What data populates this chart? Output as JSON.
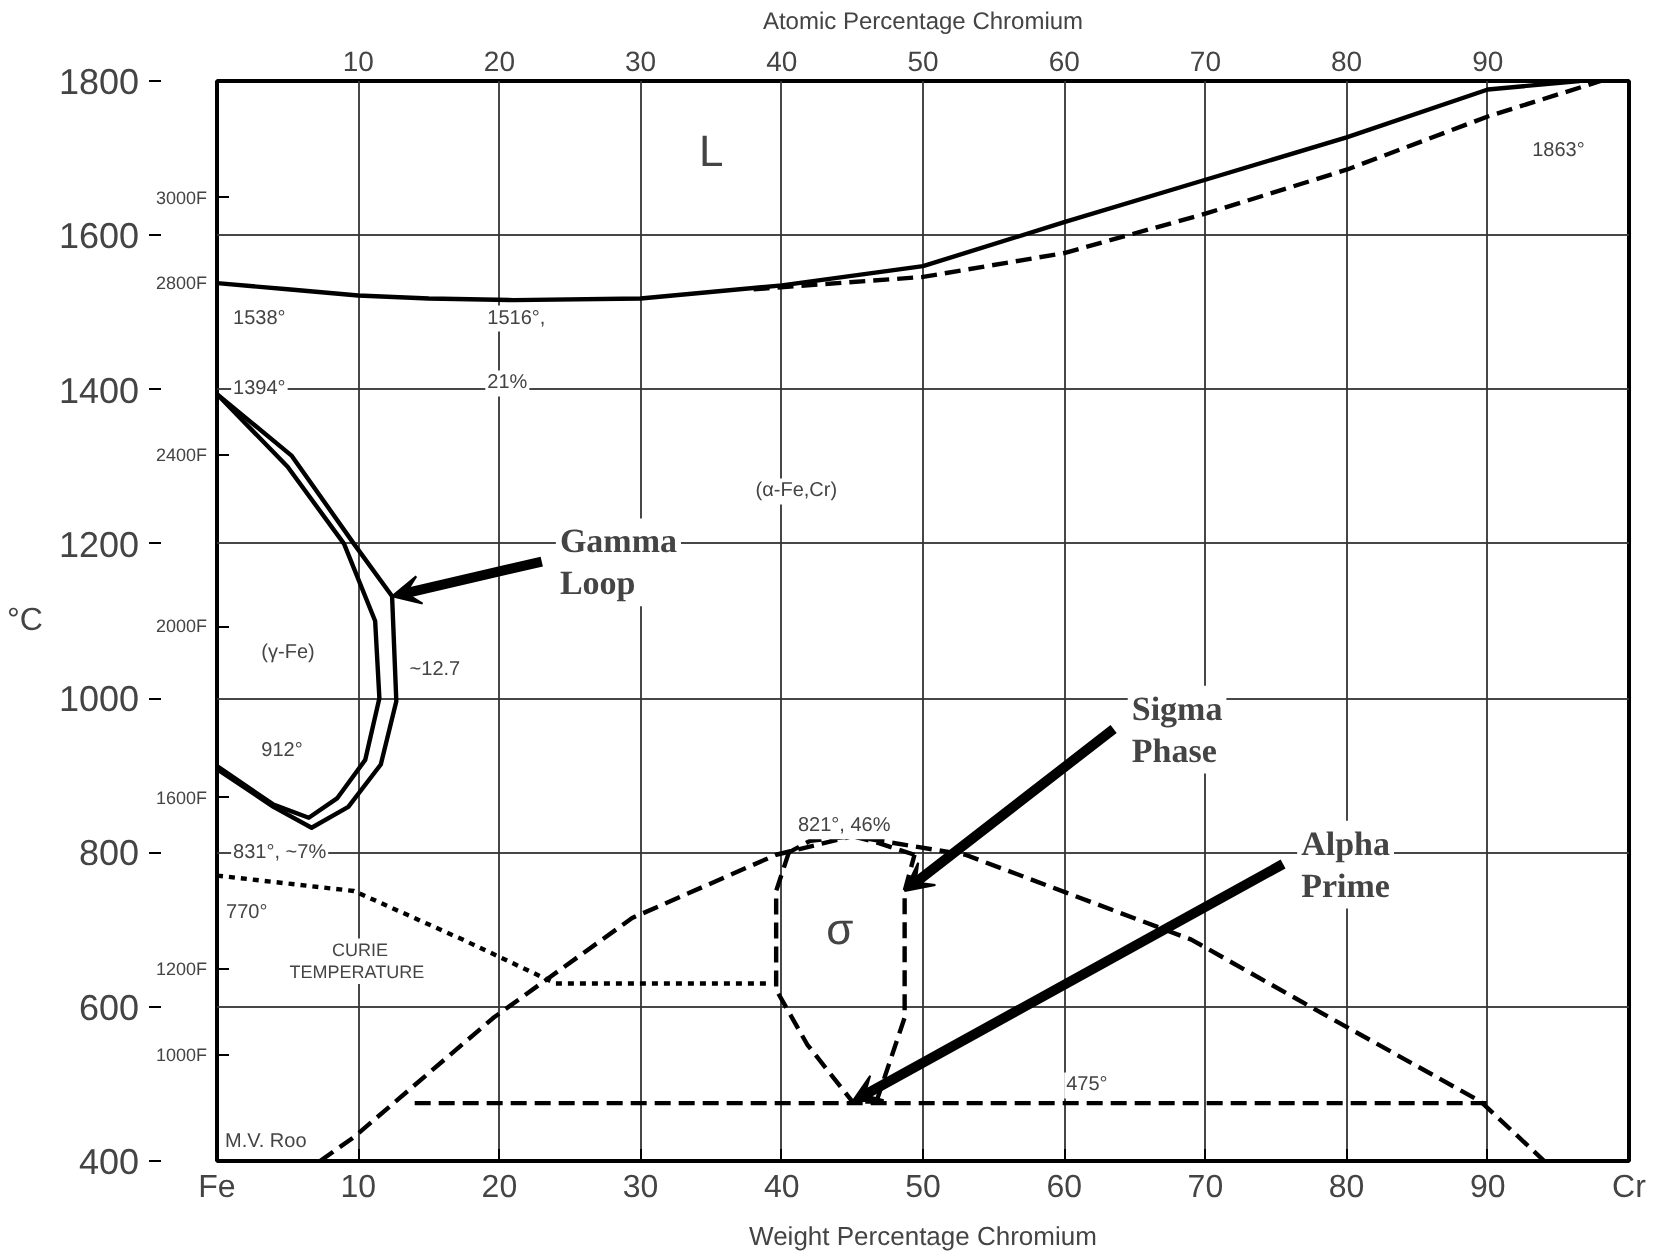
{
  "chart_data": {
    "type": "line",
    "xlabel": "Weight Percentage Chromium",
    "x2label": "Atomic Percentage Chromium",
    "ylabel": "°C",
    "xlim": [
      0,
      100
    ],
    "ylim": [
      400,
      1800
    ],
    "x2lim": [
      0,
      100
    ],
    "y2lim": [
      752,
      3272
    ],
    "xticks": [
      {
        "value": 0,
        "label": "Fe"
      },
      10,
      20,
      30,
      40,
      50,
      60,
      70,
      80,
      90,
      {
        "value": 100,
        "label": "Cr"
      }
    ],
    "x2ticks": [
      10,
      20,
      30,
      40,
      50,
      60,
      70,
      80,
      90
    ],
    "yticks": [
      400,
      600,
      800,
      1000,
      1200,
      1400,
      1600,
      1800
    ],
    "y2ticks": [
      {
        "value": 1000,
        "label": "1000F"
      },
      {
        "value": 1200,
        "label": "1200F"
      },
      {
        "value": 1600,
        "label": "1600F"
      },
      {
        "value": 2000,
        "label": "2000F"
      },
      {
        "value": 2400,
        "label": "2400F"
      },
      {
        "value": 2800,
        "label": "2800F"
      },
      {
        "value": 3000,
        "label": "3000F"
      }
    ],
    "grid": true,
    "marker": "none",
    "series": [
      {
        "color": "#000000",
        "line_style": "solid",
        "x": [
          0,
          5,
          10,
          15,
          21,
          30,
          40,
          50,
          60,
          70,
          80,
          90,
          96.5
        ],
        "values": [
          1538,
          1530,
          1522,
          1518,
          1516,
          1518,
          1535,
          1560,
          1617,
          1672,
          1727,
          1789,
          1800
        ]
      },
      {
        "color": "#000000",
        "line_style": "dashed",
        "x": [
          38,
          50,
          60,
          70,
          80,
          90,
          98
        ],
        "values": [
          1530,
          1546,
          1577,
          1628,
          1685,
          1754,
          1800
        ]
      },
      {
        "color": "#000000",
        "line_style": "solid",
        "x": [
          0,
          5.3,
          9.7,
          12.4,
          12.7,
          11.6,
          9.3,
          6.7,
          4,
          0
        ],
        "values": [
          1394,
          1314,
          1200,
          1132,
          996,
          914,
          859,
          832,
          859,
          908
        ]
      },
      {
        "color": "#000000",
        "line_style": "solid",
        "x": [
          0,
          5,
          9,
          11.2,
          11.5,
          10.5,
          8.5,
          6.5,
          4,
          0
        ],
        "values": [
          1394,
          1300,
          1200,
          1100,
          1000,
          920,
          870,
          845,
          862,
          912
        ]
      },
      {
        "color": "#000000",
        "line_style": "dashed",
        "x": [
          7.3,
          9.7,
          19.6,
          29.4,
          39.6,
          45,
          53,
          69,
          78.8,
          89.5,
          94
        ],
        "values": [
          400,
          431,
          586,
          715,
          797,
          821,
          797,
          687,
          586,
          477,
          400
        ]
      },
      {
        "color": "#000000",
        "line_style": "dashed",
        "x": [
          40.5,
          39.6,
          39.6,
          41.8,
          45,
          46.7
        ],
        "values": [
          800,
          750,
          622,
          551,
          477,
          477
        ]
      },
      {
        "color": "#000000",
        "line_style": "dashed",
        "x": [
          46.7,
          48.7,
          48.7,
          49.4
        ],
        "values": [
          477,
          586,
          750,
          797
        ]
      },
      {
        "color": "#000000",
        "line_style": "dashed",
        "x": [
          49.4,
          46.7,
          45,
          42,
          40.5
        ],
        "values": [
          797,
          813,
          821,
          815,
          800
        ]
      },
      {
        "color": "#000000",
        "line_style": "dashed",
        "x": [
          14,
          90
        ],
        "values": [
          475,
          475
        ]
      },
      {
        "color": "#000000",
        "line_style": "dotted",
        "x": [
          0,
          9.7,
          17.4,
          24,
          39
        ],
        "values": [
          770,
          750,
          687,
          630,
          630
        ]
      }
    ],
    "annotations": [
      "L",
      "1538°",
      "1516°,",
      "21%",
      "1394°",
      "(α-Fe,Cr)",
      "(γ-Fe)",
      "~12.7",
      "912°",
      "831°, ~7%",
      "770°",
      "CURIE",
      "TEMPERATURE",
      "821°, 46%",
      "σ",
      "475°",
      {
        "text": "Gamma Loop",
        "x": 12.4,
        "y": 1132
      },
      {
        "text": "Sigma Phase",
        "x": 48.7,
        "y": 750
      },
      {
        "text": "Alpha Prime",
        "x": 45,
        "y": 477
      },
      "1863°",
      "M.V. Roo"
    ]
  }
}
